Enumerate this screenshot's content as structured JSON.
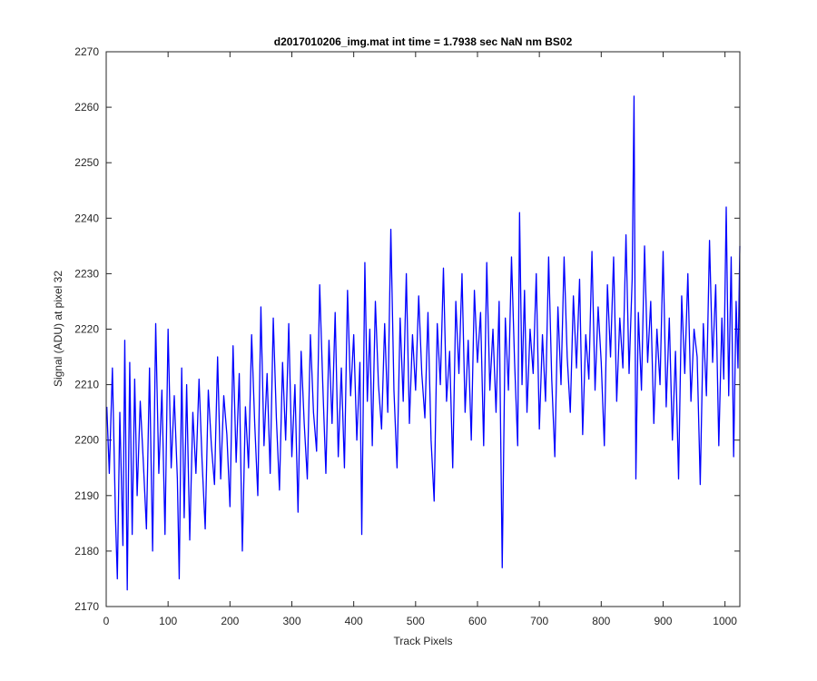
{
  "chart_data": {
    "type": "line",
    "title": "d2017010206_img.mat int time = 1.7938 sec  NaN nm BS02",
    "xlabel": "Track Pixels",
    "ylabel": "Signal (ADU) at pixel 32",
    "xlim": [
      0,
      1024
    ],
    "ylim": [
      2170,
      2270
    ],
    "xticks": [
      "0",
      "100",
      "200",
      "300",
      "400",
      "500",
      "600",
      "700",
      "800",
      "900",
      "1000"
    ],
    "yticks": [
      "2170",
      "2180",
      "2190",
      "2200",
      "2210",
      "2220",
      "2230",
      "2240",
      "2250",
      "2260",
      "2270"
    ],
    "grid": false,
    "line_color": "#0000ff",
    "series": [
      {
        "name": "",
        "points": [
          [
            1,
            2206
          ],
          [
            5,
            2194
          ],
          [
            10,
            2213
          ],
          [
            15,
            2186
          ],
          [
            18,
            2175
          ],
          [
            22,
            2205
          ],
          [
            27,
            2181
          ],
          [
            30,
            2218
          ],
          [
            34,
            2173
          ],
          [
            38,
            2214
          ],
          [
            42,
            2183
          ],
          [
            46,
            2211
          ],
          [
            50,
            2190
          ],
          [
            55,
            2207
          ],
          [
            60,
            2196
          ],
          [
            65,
            2184
          ],
          [
            70,
            2213
          ],
          [
            75,
            2180
          ],
          [
            80,
            2221
          ],
          [
            85,
            2194
          ],
          [
            90,
            2209
          ],
          [
            95,
            2183
          ],
          [
            100,
            2220
          ],
          [
            105,
            2195
          ],
          [
            110,
            2208
          ],
          [
            115,
            2193
          ],
          [
            118,
            2175
          ],
          [
            122,
            2213
          ],
          [
            126,
            2186
          ],
          [
            130,
            2210
          ],
          [
            135,
            2182
          ],
          [
            140,
            2205
          ],
          [
            145,
            2194
          ],
          [
            150,
            2211
          ],
          [
            155,
            2196
          ],
          [
            160,
            2184
          ],
          [
            165,
            2209
          ],
          [
            170,
            2199
          ],
          [
            175,
            2192
          ],
          [
            180,
            2215
          ],
          [
            185,
            2193
          ],
          [
            190,
            2208
          ],
          [
            195,
            2201
          ],
          [
            200,
            2188
          ],
          [
            205,
            2217
          ],
          [
            210,
            2196
          ],
          [
            215,
            2212
          ],
          [
            220,
            2180
          ],
          [
            225,
            2206
          ],
          [
            230,
            2195
          ],
          [
            235,
            2219
          ],
          [
            240,
            2203
          ],
          [
            245,
            2190
          ],
          [
            250,
            2224
          ],
          [
            255,
            2199
          ],
          [
            260,
            2212
          ],
          [
            265,
            2194
          ],
          [
            270,
            2222
          ],
          [
            275,
            2204
          ],
          [
            280,
            2191
          ],
          [
            285,
            2214
          ],
          [
            290,
            2200
          ],
          [
            295,
            2221
          ],
          [
            300,
            2197
          ],
          [
            305,
            2210
          ],
          [
            310,
            2187
          ],
          [
            315,
            2216
          ],
          [
            320,
            2203
          ],
          [
            325,
            2193
          ],
          [
            330,
            2219
          ],
          [
            335,
            2205
          ],
          [
            340,
            2198
          ],
          [
            345,
            2228
          ],
          [
            350,
            2210
          ],
          [
            355,
            2194
          ],
          [
            360,
            2218
          ],
          [
            365,
            2203
          ],
          [
            370,
            2223
          ],
          [
            375,
            2197
          ],
          [
            380,
            2213
          ],
          [
            385,
            2195
          ],
          [
            390,
            2227
          ],
          [
            395,
            2208
          ],
          [
            400,
            2219
          ],
          [
            405,
            2200
          ],
          [
            410,
            2214
          ],
          [
            413,
            2183
          ],
          [
            418,
            2232
          ],
          [
            422,
            2207
          ],
          [
            426,
            2220
          ],
          [
            430,
            2199
          ],
          [
            435,
            2225
          ],
          [
            440,
            2210
          ],
          [
            445,
            2202
          ],
          [
            450,
            2221
          ],
          [
            455,
            2205
          ],
          [
            460,
            2238
          ],
          [
            465,
            2209
          ],
          [
            470,
            2195
          ],
          [
            475,
            2222
          ],
          [
            480,
            2207
          ],
          [
            485,
            2230
          ],
          [
            490,
            2203
          ],
          [
            495,
            2219
          ],
          [
            500,
            2209
          ],
          [
            505,
            2226
          ],
          [
            510,
            2212
          ],
          [
            515,
            2204
          ],
          [
            520,
            2223
          ],
          [
            525,
            2200
          ],
          [
            530,
            2189
          ],
          [
            535,
            2221
          ],
          [
            540,
            2210
          ],
          [
            545,
            2231
          ],
          [
            550,
            2207
          ],
          [
            555,
            2216
          ],
          [
            560,
            2195
          ],
          [
            565,
            2225
          ],
          [
            570,
            2212
          ],
          [
            575,
            2230
          ],
          [
            580,
            2205
          ],
          [
            585,
            2218
          ],
          [
            590,
            2200
          ],
          [
            595,
            2227
          ],
          [
            600,
            2214
          ],
          [
            605,
            2223
          ],
          [
            610,
            2199
          ],
          [
            615,
            2232
          ],
          [
            620,
            2209
          ],
          [
            625,
            2220
          ],
          [
            630,
            2205
          ],
          [
            635,
            2225
          ],
          [
            640,
            2177
          ],
          [
            645,
            2222
          ],
          [
            650,
            2209
          ],
          [
            655,
            2233
          ],
          [
            660,
            2214
          ],
          [
            665,
            2199
          ],
          [
            668,
            2241
          ],
          [
            672,
            2210
          ],
          [
            676,
            2227
          ],
          [
            680,
            2205
          ],
          [
            685,
            2220
          ],
          [
            690,
            2212
          ],
          [
            695,
            2230
          ],
          [
            700,
            2202
          ],
          [
            705,
            2219
          ],
          [
            710,
            2207
          ],
          [
            715,
            2233
          ],
          [
            720,
            2211
          ],
          [
            725,
            2197
          ],
          [
            730,
            2224
          ],
          [
            735,
            2210
          ],
          [
            740,
            2233
          ],
          [
            745,
            2215
          ],
          [
            750,
            2205
          ],
          [
            755,
            2226
          ],
          [
            760,
            2213
          ],
          [
            765,
            2229
          ],
          [
            770,
            2201
          ],
          [
            775,
            2219
          ],
          [
            780,
            2211
          ],
          [
            785,
            2234
          ],
          [
            790,
            2209
          ],
          [
            795,
            2224
          ],
          [
            800,
            2214
          ],
          [
            805,
            2199
          ],
          [
            810,
            2228
          ],
          [
            815,
            2215
          ],
          [
            820,
            2233
          ],
          [
            825,
            2207
          ],
          [
            830,
            2222
          ],
          [
            835,
            2213
          ],
          [
            840,
            2237
          ],
          [
            845,
            2212
          ],
          [
            850,
            2229
          ],
          [
            853,
            2262
          ],
          [
            856,
            2193
          ],
          [
            860,
            2223
          ],
          [
            865,
            2209
          ],
          [
            870,
            2235
          ],
          [
            875,
            2214
          ],
          [
            880,
            2225
          ],
          [
            885,
            2203
          ],
          [
            890,
            2220
          ],
          [
            895,
            2210
          ],
          [
            900,
            2234
          ],
          [
            905,
            2206
          ],
          [
            910,
            2222
          ],
          [
            915,
            2200
          ],
          [
            920,
            2216
          ],
          [
            925,
            2193
          ],
          [
            930,
            2226
          ],
          [
            935,
            2212
          ],
          [
            940,
            2230
          ],
          [
            945,
            2207
          ],
          [
            950,
            2220
          ],
          [
            955,
            2215
          ],
          [
            960,
            2192
          ],
          [
            965,
            2221
          ],
          [
            970,
            2208
          ],
          [
            975,
            2236
          ],
          [
            980,
            2214
          ],
          [
            985,
            2228
          ],
          [
            990,
            2199
          ],
          [
            995,
            2222
          ],
          [
            998,
            2211
          ],
          [
            1002,
            2242
          ],
          [
            1006,
            2208
          ],
          [
            1010,
            2233
          ],
          [
            1014,
            2197
          ],
          [
            1018,
            2225
          ],
          [
            1021,
            2213
          ],
          [
            1024,
            2235
          ]
        ]
      }
    ]
  }
}
